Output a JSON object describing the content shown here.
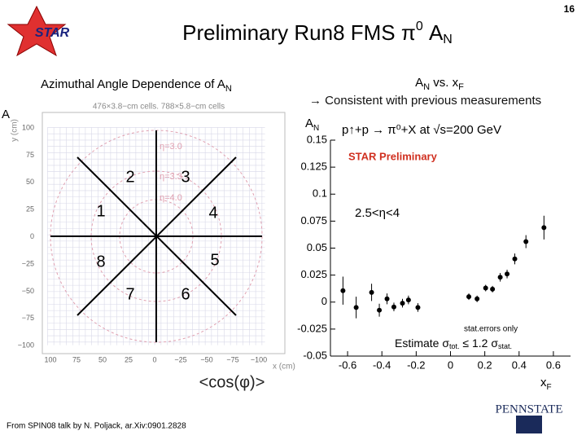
{
  "header": {
    "page_number": "16",
    "logo_text": "STAR",
    "title": [
      "Preliminary Run8 FMS π",
      "0",
      " A",
      "N"
    ]
  },
  "left_panel": {
    "heading": [
      "Azimuthal Angle Dependence of A",
      "N"
    ],
    "axis_cut_label": "A",
    "cells_caption": "476×3.8−cm cells. 788×5.8−cm cells",
    "y_axis_title": "y (cm)",
    "x_axis_title": "x (cm)",
    "y_ticks": [
      "100",
      "75",
      "50",
      "25",
      "0",
      "−25",
      "−50",
      "−75",
      "−100"
    ],
    "x_ticks": [
      "100",
      "75",
      "50",
      "25",
      "0",
      "−25",
      "−50",
      "−75",
      "−100"
    ],
    "eta_labels": [
      "η=3.0",
      "η=3.3",
      "η=4.0"
    ],
    "sectors": [
      "1",
      "2",
      "3",
      "4",
      "5",
      "6",
      "7",
      "8"
    ],
    "bottom_label": "<cos(φ)>"
  },
  "right_panel": {
    "heading": [
      "A",
      "N",
      " vs. x",
      "F"
    ],
    "subheading": "→ Consistent with previous measurements",
    "reaction": "p↑+p → π⁰+X at √s=200 GeV",
    "star_preliminary": "STAR Preliminary",
    "eta_range": "2.5<η<4",
    "stat_note": "stat.errors only",
    "estimate": [
      "Estimate σ",
      "tot.",
      " ≤ 1.2 σ",
      "stat."
    ]
  },
  "chart_data": {
    "type": "scatter",
    "y_label": [
      "A",
      "N"
    ],
    "x_label": [
      "x",
      "F"
    ],
    "x": [
      -0.627,
      -0.55,
      -0.46,
      -0.415,
      -0.37,
      -0.33,
      -0.28,
      -0.245,
      -0.19,
      0.107,
      0.155,
      0.205,
      0.245,
      0.29,
      0.33,
      0.375,
      0.44,
      0.545
    ],
    "values": [
      0.0106,
      -0.005,
      0.009,
      -0.0075,
      0.003,
      -0.0045,
      -0.001,
      0.002,
      -0.005,
      0.005,
      0.003,
      0.013,
      0.012,
      0.023,
      0.026,
      0.04,
      0.056,
      0.069
    ],
    "errors": [
      0.013,
      0.01,
      0.008,
      0.006,
      0.005,
      0.004,
      0.004,
      0.004,
      0.004,
      0.003,
      0.003,
      0.003,
      0.003,
      0.004,
      0.004,
      0.005,
      0.006,
      0.011
    ],
    "color": "#000000",
    "xlim": [
      -0.7,
      0.7
    ],
    "ylim": [
      -0.05,
      0.15
    ],
    "xticks": [
      -0.6,
      -0.4,
      -0.2,
      0,
      0.2,
      0.4,
      0.6
    ],
    "yticks": [
      -0.05,
      -0.025,
      0,
      0.025,
      0.05,
      0.075,
      0.1,
      0.125,
      0.15
    ]
  },
  "footer": {
    "source": "From SPIN08 talk by N. Poljack, ar.Xiv:0901.2828",
    "logo_text": "PENNSTATE"
  }
}
